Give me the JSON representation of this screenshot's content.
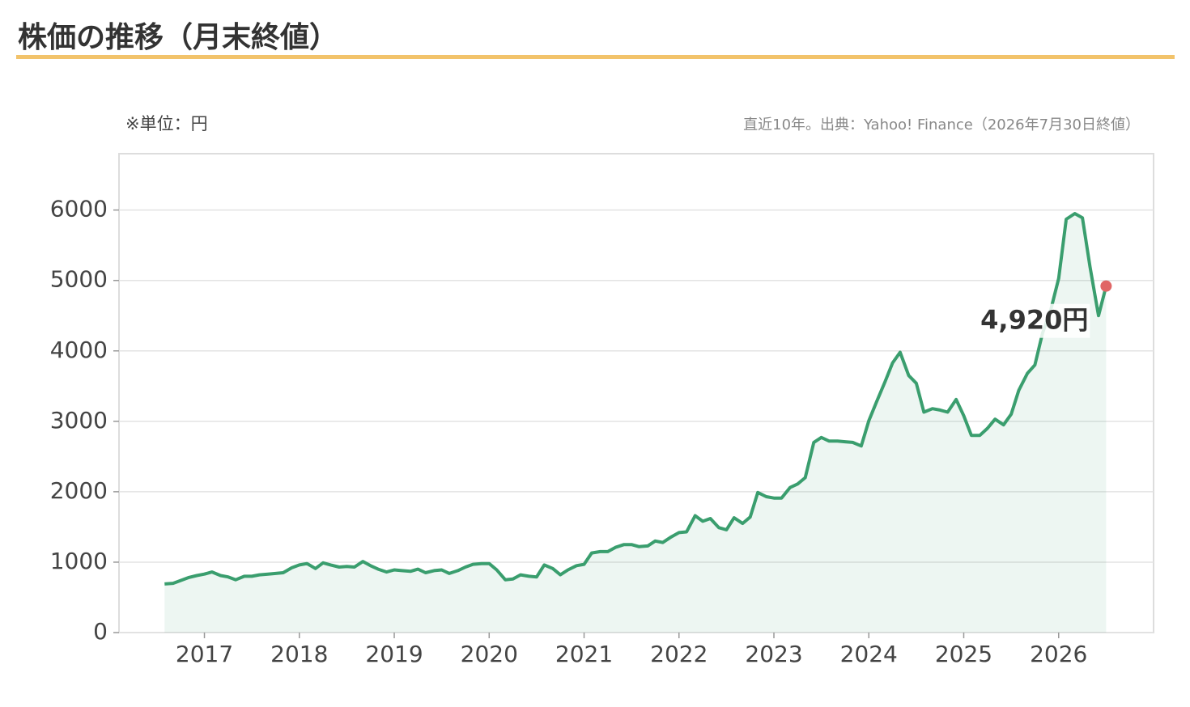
{
  "chart_data": {
    "type": "line",
    "title": "株価の推移（月末終値）",
    "unit_note": "※単位：円",
    "source_note": "直近10年。出典：Yahoo! Finance（2026年7月30日終値）",
    "annotation": "4,920円",
    "x": [
      2016.58,
      2016.67,
      2016.75,
      2016.83,
      2016.92,
      2017,
      2017.08,
      2017.17,
      2017.25,
      2017.33,
      2017.42,
      2017.5,
      2017.58,
      2017.67,
      2017.75,
      2017.83,
      2017.92,
      2018,
      2018.08,
      2018.17,
      2018.25,
      2018.33,
      2018.42,
      2018.5,
      2018.58,
      2018.67,
      2018.75,
      2018.83,
      2018.92,
      2019,
      2019.08,
      2019.17,
      2019.25,
      2019.33,
      2019.42,
      2019.5,
      2019.58,
      2019.67,
      2019.75,
      2019.83,
      2019.92,
      2020,
      2020.08,
      2020.17,
      2020.25,
      2020.33,
      2020.42,
      2020.5,
      2020.58,
      2020.67,
      2020.75,
      2020.83,
      2020.92,
      2021,
      2021.08,
      2021.17,
      2021.25,
      2021.33,
      2021.42,
      2021.5,
      2021.58,
      2021.67,
      2021.75,
      2021.83,
      2021.92,
      2022,
      2022.08,
      2022.17,
      2022.25,
      2022.33,
      2022.42,
      2022.5,
      2022.58,
      2022.67,
      2022.75,
      2022.83,
      2022.92,
      2023,
      2023.08,
      2023.17,
      2023.25,
      2023.33,
      2023.42,
      2023.5,
      2023.58,
      2023.67,
      2023.75,
      2023.83,
      2023.92,
      2024,
      2024.08,
      2024.17,
      2024.25,
      2024.33,
      2024.42,
      2024.5,
      2024.58,
      2024.67,
      2024.75,
      2024.83,
      2024.92,
      2025,
      2025.08,
      2025.17,
      2025.25,
      2025.33,
      2025.42,
      2025.5,
      2025.58,
      2025.67,
      2025.75,
      2025.83,
      2025.92,
      2026,
      2026.08,
      2026.17,
      2026.25,
      2026.33,
      2026.42,
      2026.5
    ],
    "series": [
      {
        "color": "#3a9e6e",
        "values": [
          690,
          700,
          740,
          780,
          810,
          830,
          860,
          810,
          790,
          750,
          800,
          800,
          820,
          830,
          840,
          850,
          920,
          960,
          980,
          910,
          990,
          960,
          930,
          940,
          930,
          1010,
          950,
          900,
          860,
          890,
          880,
          870,
          900,
          850,
          880,
          890,
          840,
          880,
          930,
          970,
          980,
          980,
          890,
          750,
          760,
          820,
          800,
          790,
          960,
          910,
          820,
          890,
          950,
          970,
          1130,
          1150,
          1150,
          1210,
          1250,
          1250,
          1220,
          1230,
          1300,
          1280,
          1360,
          1420,
          1430,
          1660,
          1580,
          1620,
          1490,
          1460,
          1630,
          1550,
          1640,
          1990,
          1930,
          1910,
          1910,
          2060,
          2110,
          2200,
          2700,
          2770,
          2720,
          2720,
          2710,
          2700,
          2650,
          3010,
          3270,
          3560,
          3830,
          3980,
          3650,
          3540,
          3130,
          3180,
          3160,
          3130,
          3310,
          3080,
          2800,
          2800,
          2900,
          3030,
          2950,
          3100,
          3440,
          3680,
          3800,
          4250,
          4600,
          5030,
          5870,
          5950,
          5890,
          5200,
          4500,
          4920
        ]
      }
    ],
    "marker_color": "#e06666",
    "xlim": [
      2016.1,
      2027.0
    ],
    "xticks": [
      2017,
      2018,
      2019,
      2020,
      2021,
      2022,
      2023,
      2024,
      2025,
      2026
    ],
    "ylim": [
      0,
      6800
    ],
    "yticks": [
      0,
      1000,
      2000,
      3000,
      4000,
      5000,
      6000
    ],
    "grid": true
  }
}
